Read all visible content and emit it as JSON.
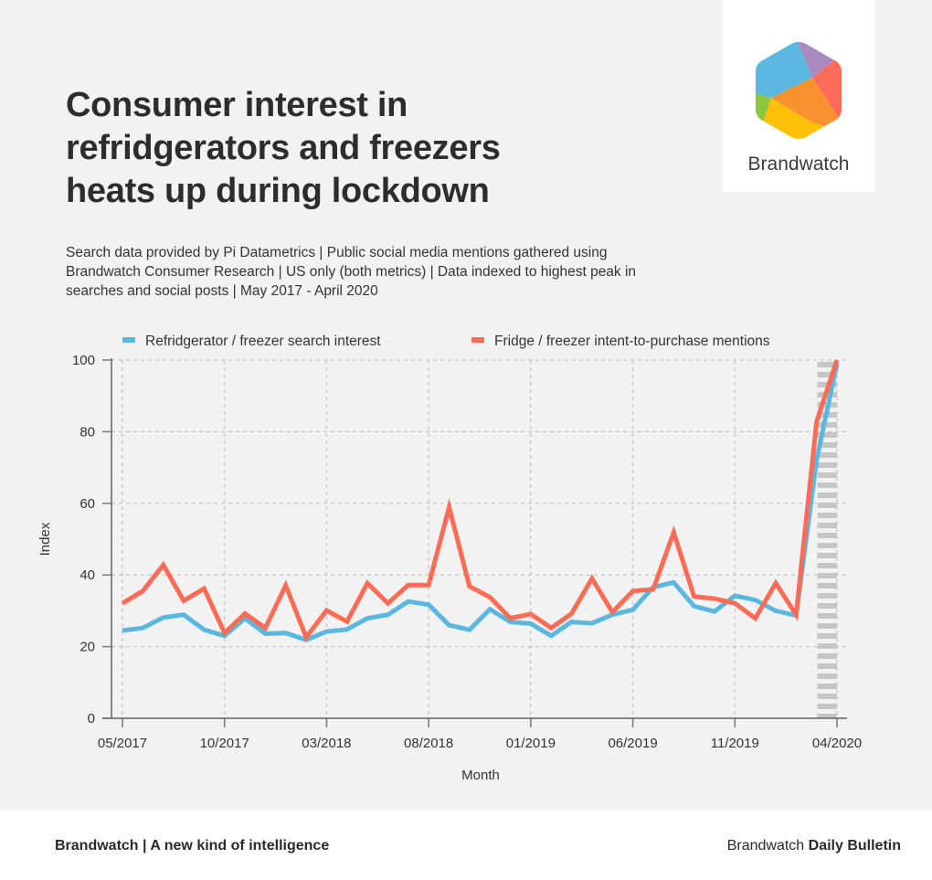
{
  "header": {
    "title": "Consumer interest in refridgerators and freezers heats up during lockdown",
    "subtitle": "Search data provided by Pi Datametrics | Public social media mentions gathered using Brandwatch Consumer Research | US only (both metrics) | Data indexed to highest peak in searches and social posts | May 2017 - April 2020"
  },
  "logo": {
    "icon": "brandwatch-hexagon-logo",
    "text": "Brandwatch",
    "colors": [
      "#5ab7e0",
      "#a98bbf",
      "#ff6b5a",
      "#f7922f",
      "#ffc107",
      "#8cc63f"
    ]
  },
  "footer": {
    "left": "Brandwatch | A new kind of intelligence",
    "right_regular": "Brandwatch",
    "right_bold": "Daily Bulletin"
  },
  "chart_data": {
    "type": "line",
    "title": "",
    "xlabel": "Month",
    "ylabel": "Index",
    "ylim": [
      0,
      100
    ],
    "yticks": [
      0,
      20,
      40,
      60,
      80,
      100
    ],
    "grid": true,
    "legend_position": "top",
    "x": [
      "05/2017",
      "06/2017",
      "07/2017",
      "08/2017",
      "09/2017",
      "10/2017",
      "11/2017",
      "12/2017",
      "01/2018",
      "02/2018",
      "03/2018",
      "04/2018",
      "05/2018",
      "06/2018",
      "07/2018",
      "08/2018",
      "09/2018",
      "10/2018",
      "11/2018",
      "12/2018",
      "01/2019",
      "02/2019",
      "03/2019",
      "04/2019",
      "05/2019",
      "06/2019",
      "07/2019",
      "08/2019",
      "09/2019",
      "10/2019",
      "11/2019",
      "12/2019",
      "01/2020",
      "02/2020",
      "03/2020",
      "04/2020"
    ],
    "xtick_labels": [
      "05/2017",
      "10/2017",
      "03/2018",
      "08/2018",
      "01/2019",
      "06/2019",
      "11/2019",
      "04/2020"
    ],
    "highlight_band": {
      "from": "03/2020",
      "to": "04/2020",
      "style": "hatched-gray"
    },
    "series": [
      {
        "name": "Refridgerator / freezer search interest",
        "color": "#5ab7e0",
        "values": [
          24.5,
          25.2,
          28.1,
          28.9,
          24.7,
          23.0,
          27.9,
          23.6,
          23.8,
          21.9,
          24.2,
          24.8,
          27.9,
          28.9,
          32.6,
          31.7,
          26.0,
          24.7,
          30.4,
          26.9,
          26.4,
          23.0,
          26.9,
          26.5,
          28.9,
          30.3,
          36.6,
          37.9,
          31.3,
          29.8,
          34.2,
          33.0,
          30.0,
          28.7,
          72.1,
          99
        ]
      },
      {
        "name": "Fridge / freezer intent-to-purchase mentions",
        "color": "#ff6b55",
        "values": [
          32.1,
          35.5,
          42.8,
          32.8,
          36.2,
          23.8,
          29.2,
          25.2,
          37.1,
          22.6,
          30.1,
          27.0,
          37.7,
          32.1,
          37.2,
          37.2,
          58.9,
          36.8,
          33.8,
          27.9,
          29.1,
          25.2,
          29.2,
          39.0,
          29.6,
          35.5,
          36.0,
          51.9,
          34.0,
          33.4,
          32.1,
          27.9,
          37.7,
          28.9,
          82.8,
          100
        ]
      }
    ]
  }
}
